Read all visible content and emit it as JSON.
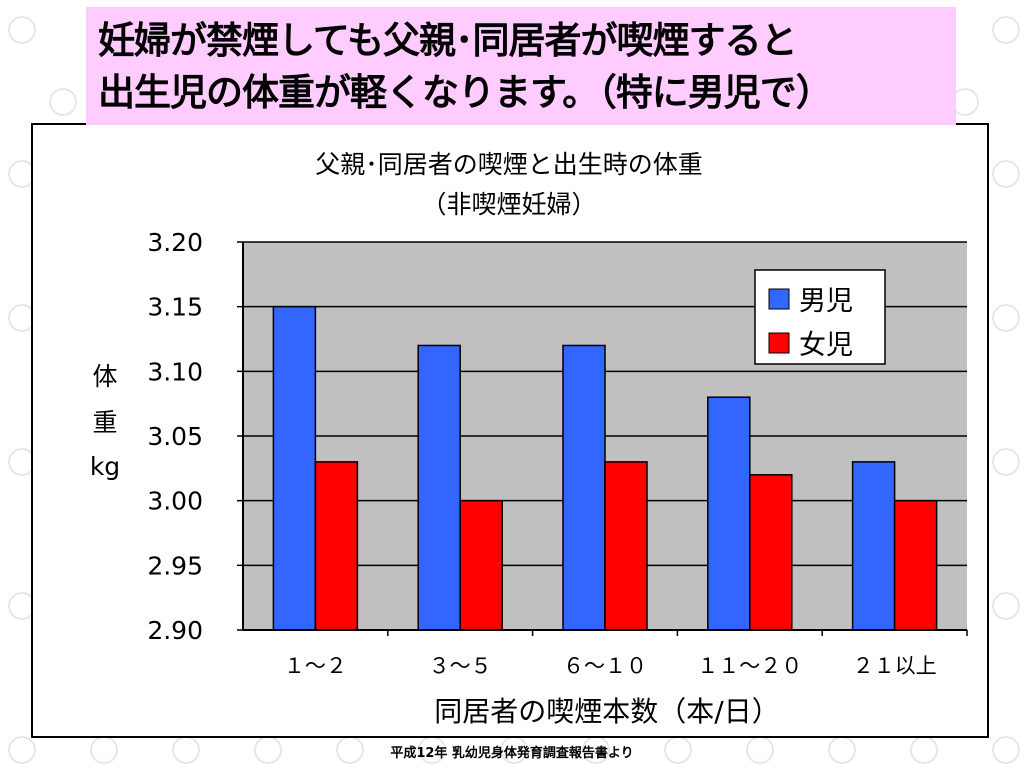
{
  "headline": {
    "line1": "妊婦が禁煙しても父親･同居者が喫煙すると",
    "line2": "出生児の体重が軽くなります。（特に男児で）"
  },
  "footer": {
    "source": "平成12年  乳幼児身体発育調査報告書より"
  },
  "colors": {
    "headline_bg": "#ffccff",
    "plot_bg": "#c0c0c0",
    "male": "#3366ff",
    "female": "#ff0000"
  },
  "chart_data": {
    "type": "bar",
    "title": "父親･同居者の喫煙と出生時の体重",
    "subtitle": "（非喫煙妊婦）",
    "xlabel": "同居者の喫煙本数（本/日）",
    "ylabel": [
      "体",
      "重",
      "kg"
    ],
    "categories": [
      "１～２",
      "３～５",
      "６～１０",
      "１１～２０",
      "２１以上"
    ],
    "series": [
      {
        "name": "男児",
        "color": "#3366ff",
        "values": [
          3.15,
          3.12,
          3.12,
          3.08,
          3.03
        ]
      },
      {
        "name": "女児",
        "color": "#ff0000",
        "values": [
          3.03,
          3.0,
          3.03,
          3.02,
          3.0
        ]
      }
    ],
    "ylim": [
      2.9,
      3.2
    ],
    "yticks": [
      "2.90",
      "2.95",
      "3.00",
      "3.05",
      "3.10",
      "3.15",
      "3.20"
    ],
    "grid": true,
    "legend_position": "top-right"
  }
}
